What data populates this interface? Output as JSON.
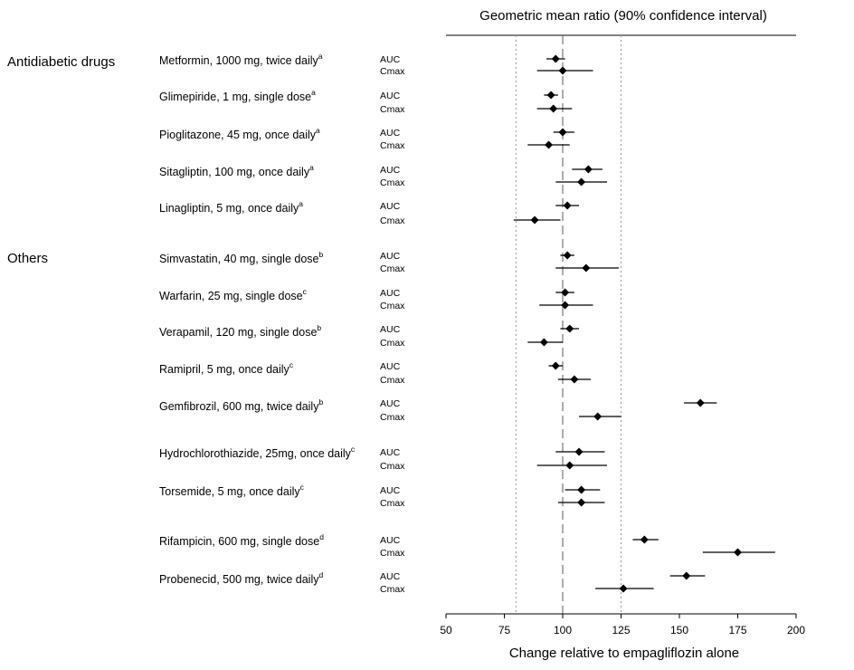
{
  "chart_data": {
    "type": "forest",
    "title": "Geometric mean ratio (90% confidence interval)",
    "xlabel": "Change relative to empagliflozin alone",
    "xlim": [
      50,
      200
    ],
    "xticks": [
      50,
      75,
      100,
      125,
      150,
      175,
      200
    ],
    "reference_lines": [
      80,
      100,
      125
    ],
    "groups": [
      {
        "name": "Antidiabetic drugs",
        "drugs": [
          {
            "label": "Metformin, 1000 mg, twice daily",
            "sup": "a",
            "measures": [
              {
                "name": "AUC",
                "value": 97,
                "lo": 93,
                "hi": 101
              },
              {
                "name": "Cmax",
                "value": 100,
                "lo": 89,
                "hi": 113
              }
            ]
          },
          {
            "label": "Glimepiride, 1 mg, single dose",
            "sup": "a",
            "measures": [
              {
                "name": "AUC",
                "value": 95,
                "lo": 92,
                "hi": 98
              },
              {
                "name": "Cmax",
                "value": 96,
                "lo": 89,
                "hi": 104
              }
            ]
          },
          {
            "label": "Pioglitazone, 45 mg, once daily",
            "sup": "a",
            "measures": [
              {
                "name": "AUC",
                "value": 100,
                "lo": 96,
                "hi": 105
              },
              {
                "name": "Cmax",
                "value": 94,
                "lo": 85,
                "hi": 103
              }
            ]
          },
          {
            "label": "Sitagliptin, 100 mg, once daily",
            "sup": "a",
            "measures": [
              {
                "name": "AUC",
                "value": 111,
                "lo": 104,
                "hi": 117
              },
              {
                "name": "Cmax",
                "value": 108,
                "lo": 97,
                "hi": 119
              }
            ]
          },
          {
            "label": "Linagliptin, 5 mg, once daily",
            "sup": "a",
            "measures": [
              {
                "name": "AUC",
                "value": 102,
                "lo": 97,
                "hi": 107
              },
              {
                "name": "Cmax",
                "value": 88,
                "lo": 79,
                "hi": 99
              }
            ]
          }
        ]
      },
      {
        "name": "Others",
        "drugs": [
          {
            "label": "Simvastatin, 40 mg, single dose",
            "sup": "b",
            "measures": [
              {
                "name": "AUC",
                "value": 102,
                "lo": 99,
                "hi": 105
              },
              {
                "name": "Cmax",
                "value": 110,
                "lo": 97,
                "hi": 124
              }
            ]
          },
          {
            "label": "Warfarin, 25 mg, single dose",
            "sup": "c",
            "measures": [
              {
                "name": "AUC",
                "value": 101,
                "lo": 97,
                "hi": 105
              },
              {
                "name": "Cmax",
                "value": 101,
                "lo": 90,
                "hi": 113
              }
            ]
          },
          {
            "label": "Verapamil, 120 mg, single dose",
            "sup": "b",
            "measures": [
              {
                "name": "AUC",
                "value": 103,
                "lo": 99,
                "hi": 107
              },
              {
                "name": "Cmax",
                "value": 92,
                "lo": 85,
                "hi": 100
              }
            ]
          },
          {
            "label": "Ramipril, 5 mg, once daily",
            "sup": "c",
            "measures": [
              {
                "name": "AUC",
                "value": 97,
                "lo": 94,
                "hi": 100
              },
              {
                "name": "Cmax",
                "value": 105,
                "lo": 98,
                "hi": 112
              }
            ]
          },
          {
            "label": "Gemfibrozil, 600 mg, twice daily",
            "sup": "b",
            "measures": [
              {
                "name": "AUC",
                "value": 159,
                "lo": 152,
                "hi": 166
              },
              {
                "name": "Cmax",
                "value": 115,
                "lo": 107,
                "hi": 125
              }
            ]
          },
          {
            "label": "Hydrochlorothiazide, 25mg, once daily",
            "sup": "c",
            "measures": [
              {
                "name": "AUC",
                "value": 107,
                "lo": 97,
                "hi": 118
              },
              {
                "name": "Cmax",
                "value": 103,
                "lo": 89,
                "hi": 119
              }
            ]
          },
          {
            "label": "Torsemide, 5 mg, once daily",
            "sup": "c",
            "measures": [
              {
                "name": "AUC",
                "value": 108,
                "lo": 101,
                "hi": 116
              },
              {
                "name": "Cmax",
                "value": 108,
                "lo": 98,
                "hi": 118
              }
            ]
          },
          {
            "label": "Rifampicin, 600 mg, single dose",
            "sup": "d",
            "measures": [
              {
                "name": "AUC",
                "value": 135,
                "lo": 130,
                "hi": 141
              },
              {
                "name": "Cmax",
                "value": 175,
                "lo": 160,
                "hi": 191
              }
            ]
          },
          {
            "label": "Probenecid, 500 mg, twice daily",
            "sup": "d",
            "measures": [
              {
                "name": "AUC",
                "value": 153,
                "lo": 146,
                "hi": 161
              },
              {
                "name": "Cmax",
                "value": 126,
                "lo": 114,
                "hi": 139
              }
            ]
          }
        ]
      }
    ]
  }
}
